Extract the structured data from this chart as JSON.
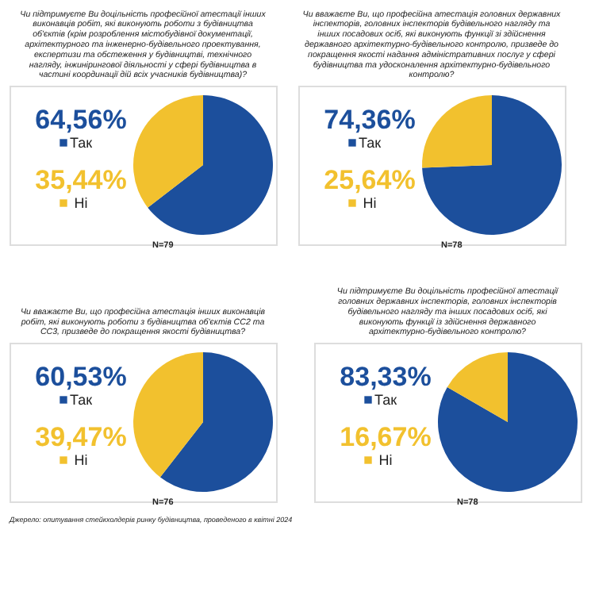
{
  "chart_data": [
    {
      "type": "pie",
      "title": "Чи підтримуєте Ви доцільність професійної атестації інших виконавців робіт, які виконують роботи з будівництва об'єктів (крім розроблення містобудівної документації, архітектурного та інженерно-будівельного проектування, експертизи та обстеження у будівництві, технічного нагляду, інжинірингової діяльності у сфері будівництва в частині координації дій всіх учасників будівництва)?",
      "categories": [
        "Так",
        "Ні"
      ],
      "values": [
        64.56,
        35.44
      ],
      "value_labels": [
        "64,56%",
        "35,44%"
      ],
      "colors": [
        "#1c4f9c",
        "#f2c12e"
      ],
      "legend": "left",
      "annotations": [
        "N=79"
      ]
    },
    {
      "type": "pie",
      "title": "Чи вважаєте Ви, що професійна атестація головних державних інспекторів, головних інспекторів будівельного нагляду та інших посадових осіб, які виконують функції зі здійснення державного архітектурно-будівельного контролю, призведе до покращення якості надання адміністративних послуг у сфері будівництва та удосконалення архітектурно-будівельного контролю?",
      "categories": [
        "Так",
        "Ні"
      ],
      "values": [
        74.36,
        25.64
      ],
      "value_labels": [
        "74,36%",
        "25,64%"
      ],
      "colors": [
        "#1c4f9c",
        "#f2c12e"
      ],
      "legend": "left",
      "annotations": [
        "N=78"
      ]
    },
    {
      "type": "pie",
      "title": "Чи вважаєте Ви, що професійна атестація інших виконавців робіт, які виконують роботи з будівництва об'єктів СС2 та СС3, призведе до покращення якості будівництва?",
      "categories": [
        "Так",
        "Ні"
      ],
      "values": [
        60.53,
        39.47
      ],
      "value_labels": [
        "60,53%",
        "39,47%"
      ],
      "colors": [
        "#1c4f9c",
        "#f2c12e"
      ],
      "legend": "left",
      "annotations": [
        "N=76",
        "Джерело: опитування стейкхолдерів ринку будівництва, проведеного в квітні 2024"
      ]
    },
    {
      "type": "pie",
      "title": "Чи підтримуєте Ви доцільність професійної атестації головних державних інспекторів, головних інспекторів будівельного нагляду та інших посадових осіб, які виконують функції із здійснення державного архітектурно-будівельного контролю?",
      "categories": [
        "Так",
        "Ні"
      ],
      "values": [
        83.33,
        16.67
      ],
      "value_labels": [
        "83,33%",
        "16,67%"
      ],
      "colors": [
        "#1c4f9c",
        "#f2c12e"
      ],
      "legend": "left",
      "annotations": [
        "N=78"
      ]
    }
  ]
}
